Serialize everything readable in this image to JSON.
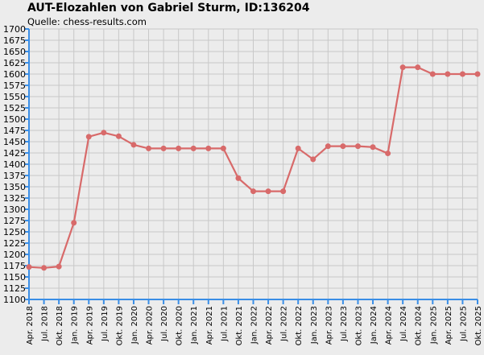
{
  "title": "AUT-Elozahlen von Gabriel Sturm, ID:136204",
  "subtitle": "Quelle: chess-results.com",
  "colors": {
    "background": "#ececec",
    "grid": "#c8c8c8",
    "axis": "#3a8ee6",
    "line": "#d86a6a"
  },
  "chart_data": {
    "type": "line",
    "title": "AUT-Elozahlen von Gabriel Sturm, ID:136204",
    "subtitle": "Quelle: chess-results.com",
    "xlabel": "",
    "ylabel": "",
    "ylim": [
      1100,
      1700
    ],
    "ytick_step": 25,
    "grid": true,
    "legend": "none",
    "categories": [
      "Apr. 2018",
      "Jul. 2018",
      "Okt. 2018",
      "Jan. 2019",
      "Apr. 2019",
      "Jul. 2019",
      "Okt. 2019",
      "Jan. 2020",
      "Apr. 2020",
      "Jul. 2020",
      "Okt. 2020",
      "Jan. 2021",
      "Apr. 2021",
      "Jul. 2021",
      "Okt. 2021",
      "Jan. 2022",
      "Apr. 2022",
      "Jul. 2022",
      "Okt. 2022",
      "Jan. 2023",
      "Apr. 2023",
      "Jul. 2023",
      "Okt. 2023",
      "Jan. 2024",
      "Apr. 2024",
      "Jul. 2024",
      "Okt. 2024",
      "Jan. 2025",
      "Apr. 2025",
      "Jul. 2025",
      "Okt. 2025"
    ],
    "values": [
      1172,
      1170,
      1173,
      1270,
      1461,
      1470,
      1462,
      1443,
      1435,
      1435,
      1435,
      1435,
      1435,
      1435,
      1369,
      1340,
      1340,
      1340,
      1435,
      1411,
      1440,
      1440,
      1440,
      1438,
      1424,
      1615,
      1615,
      1600,
      1600,
      1600,
      1600
    ]
  }
}
